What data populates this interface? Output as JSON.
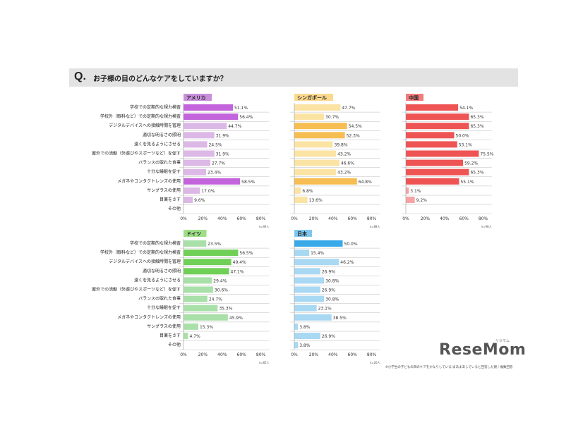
{
  "question": {
    "mark": "Q.",
    "text": "お子様の目のどんなケアをしていますか？"
  },
  "logo": {
    "text": "ReseMom",
    "ruby": "リセマム"
  },
  "footnote": "※小学生の子どもの目のケアをかなりしている/まあまあしていると回答した親｜複数回答",
  "chart_data": [
    {
      "type": "bar",
      "title": "アメリカ",
      "n": "n=94人",
      "categories": [
        "学校での定期的な視力検査",
        "学校外（眼科など）での定期的な視力検査",
        "デジタルデバイスへの接触時間を管理",
        "適切な明るさの照明",
        "遠くを見るようにさせる",
        "屋外での活動（外遊びやスポーツなど）を促す",
        "バランスの取れた食事",
        "十分な睡眠を促す",
        "メガネやコンタクトレンズの使用",
        "サングラスの使用",
        "目薬をさす",
        "その他"
      ],
      "values": [
        51.1,
        56.4,
        44.7,
        31.9,
        24.5,
        31.9,
        27.7,
        23.4,
        58.5,
        17.0,
        9.6,
        null
      ],
      "labels": [
        "51.1%",
        "56.4%",
        "44.7%",
        "31.9%",
        "24.5%",
        "31.9%",
        "27.7%",
        "23.4%",
        "58.5%",
        "17.0%",
        "9.6%",
        ""
      ],
      "xticks": [
        "0%",
        "20%",
        "40%",
        "60%",
        "80%"
      ],
      "xlim": [
        0,
        80
      ]
    },
    {
      "type": "bar",
      "title": "シンガポール",
      "n": "n=88人",
      "values": [
        47.7,
        30.7,
        54.5,
        52.3,
        39.8,
        43.2,
        46.6,
        43.2,
        64.8,
        6.8,
        13.6,
        null
      ],
      "labels": [
        "47.7%",
        "30.7%",
        "54.5%",
        "52.3%",
        "39.8%",
        "43.2%",
        "46.6%",
        "43.2%",
        "64.8%",
        "6.8%",
        "13.6%",
        ""
      ],
      "xticks": [
        "0%",
        "20%",
        "40%",
        "60%",
        "80%"
      ],
      "xlim": [
        0,
        80
      ]
    },
    {
      "type": "bar",
      "title": "中国",
      "n": "n=98人",
      "values": [
        54.1,
        65.3,
        65.3,
        50.0,
        53.1,
        75.5,
        59.2,
        65.3,
        55.1,
        3.1,
        9.2,
        null
      ],
      "labels": [
        "54.1%",
        "65.3%",
        "65.3%",
        "50.0%",
        "53.1%",
        "75.5%",
        "59.2%",
        "65.3%",
        "55.1%",
        "3.1%",
        "9.2%",
        ""
      ],
      "xticks": [
        "0%",
        "20%",
        "40%",
        "60%",
        "80%"
      ],
      "xlim": [
        0,
        80
      ]
    },
    {
      "type": "bar",
      "title": "ドイツ",
      "n": "n=85人",
      "categories": [
        "学校での定期的な視力検査",
        "学校外（眼科など）での定期的な視力検査",
        "デジタルデバイスへの接触時間を管理",
        "適切な明るさの照明",
        "遠くを見るようにさせる",
        "屋外での活動（外遊びやスポーツなど）を促す",
        "バランスの取れた食事",
        "十分な睡眠を促す",
        "メガネやコンタクトレンズの使用",
        "サングラスの使用",
        "目薬をさす",
        "その他"
      ],
      "values": [
        23.5,
        56.5,
        49.4,
        47.1,
        29.4,
        30.6,
        24.7,
        35.3,
        45.9,
        15.3,
        4.7,
        null
      ],
      "labels": [
        "23.5%",
        "56.5%",
        "49.4%",
        "47.1%",
        "29.4%",
        "30.6%",
        "24.7%",
        "35.3%",
        "45.9%",
        "15.3%",
        "4.7%",
        ""
      ],
      "xticks": [
        "0%",
        "20%",
        "40%",
        "60%",
        "80%"
      ],
      "xlim": [
        0,
        80
      ]
    },
    {
      "type": "bar",
      "title": "日本",
      "n": "n=26人",
      "values": [
        50.0,
        15.4,
        46.2,
        26.9,
        30.8,
        26.9,
        30.8,
        23.1,
        38.5,
        3.8,
        26.9,
        3.8
      ],
      "labels": [
        "50.0%",
        "15.4%",
        "46.2%",
        "26.9%",
        "30.8%",
        "26.9%",
        "30.8%",
        "23.1%",
        "38.5%",
        "3.8%",
        "26.9%",
        "3.8%"
      ],
      "xticks": [
        "0%",
        "20%",
        "40%",
        "60%",
        "80%"
      ],
      "xlim": [
        0,
        80
      ]
    }
  ],
  "colors": {
    "usa": {
      "light": "#dcb8e6",
      "dark": "#c364dc",
      "tag": "#c98fdb"
    },
    "sg": {
      "light": "#fbe3a4",
      "dark": "#f6bd52",
      "tag": "#fbd98e"
    },
    "cn": {
      "light": "#f7a3a3",
      "dark": "#ee5454",
      "tag": "#f17d7d"
    },
    "de": {
      "light": "#a9e0a9",
      "dark": "#6fcf57",
      "tag": "#9ede86"
    },
    "jp": {
      "light": "#a9d8f3",
      "dark": "#3aa9e8",
      "tag": "#7ec6ef"
    }
  }
}
